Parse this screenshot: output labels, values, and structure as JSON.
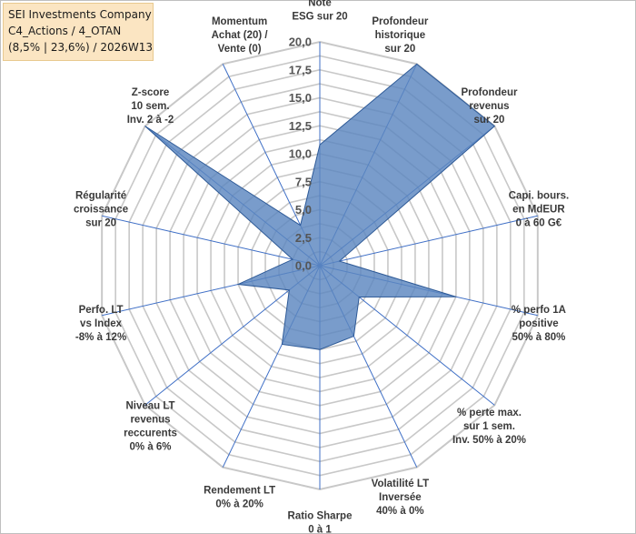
{
  "header": {
    "company": "SEI Investments Company",
    "category": "C4_Actions / 4_OTAN",
    "stats": "(8,5% | 23,6%) / 2026W13"
  },
  "colors": {
    "fill": "#5b86c0",
    "stroke": "#2e5a97",
    "grid": "#c8c8c8",
    "axis": "#3f6fc6",
    "box": "#fbe5c2"
  },
  "chart_data": {
    "type": "radar",
    "title": "",
    "rmax": 20,
    "ticks": [
      "0,0",
      "2,5",
      "5,0",
      "7,5",
      "10,0",
      "12,5",
      "15,0",
      "17,5",
      "20,0"
    ],
    "axes": [
      {
        "label": [
          "Note",
          "ESG sur 20"
        ],
        "value": 10.8
      },
      {
        "label": [
          "Profondeur",
          "historique",
          "sur 20"
        ],
        "value": 20
      },
      {
        "label": [
          "Profondeur",
          "revenus",
          "sur 20"
        ],
        "value": 20
      },
      {
        "label": [
          "Capi. bours.",
          "en MdEUR",
          "0 à 60 G€"
        ],
        "value": 1.8
      },
      {
        "label": [
          "% perfo 1A",
          "positive",
          "50% à 80%"
        ],
        "value": 12.5
      },
      {
        "label": [
          "% perte max.",
          "sur 1 sem.",
          "Inv. 50% à 20%"
        ],
        "value": 4.5
      },
      {
        "label": [
          "Volatilité LT",
          "Inversée",
          "40% à 0%"
        ],
        "value": 7.0
      },
      {
        "label": [
          "Ratio Sharpe",
          "0 à 1"
        ],
        "value": 7.5
      },
      {
        "label": [
          "Rendement LT",
          "0% à 20%"
        ],
        "value": 7.8
      },
      {
        "label": [
          "Niveau LT",
          "revenus",
          "reccurents",
          "0% à 6%"
        ],
        "value": 3.5
      },
      {
        "label": [
          "Perfo. LT",
          "vs Index",
          "-8% à 12%"
        ],
        "value": 7.5
      },
      {
        "label": [
          "Régularité",
          "croissance",
          "sur 20"
        ],
        "value": 2.5
      },
      {
        "label": [
          "Z-score",
          "10 sem.",
          "Inv. 2 à -2"
        ],
        "value": 20
      },
      {
        "label": [
          "Momentum",
          "Achat (20) /",
          "Vente (0)"
        ],
        "value": 4.0
      }
    ]
  }
}
